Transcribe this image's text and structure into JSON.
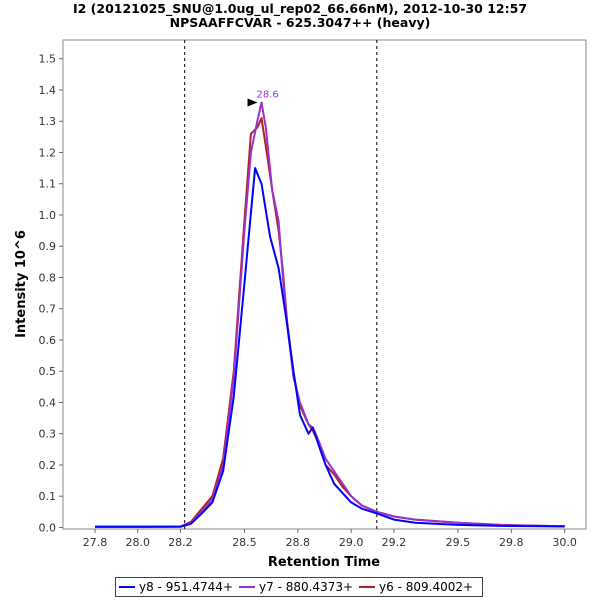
{
  "chart_data": {
    "type": "line",
    "title": "I2 (20121025_SNU@1.0ug_ul_rep02_66.66nM), 2012-10-30 12:57",
    "subtitle": "NPSAAFFCVAR - 625.3047++ (heavy)",
    "xlabel": "Retention Time",
    "ylabel": "Intensity 10^6",
    "xlim": [
      27.65,
      30.1
    ],
    "ylim": [
      -0.005,
      1.56
    ],
    "x_ticks": [
      "27.8",
      "28.0",
      "28.2",
      "28.5",
      "28.8",
      "29.0",
      "29.2",
      "29.5",
      "29.8",
      "30.0"
    ],
    "x_tick_values": [
      27.8,
      28.0,
      28.2,
      28.5,
      28.75,
      29.0,
      29.2,
      29.5,
      29.75,
      30.0
    ],
    "y_ticks": [
      "0.0",
      "0.1",
      "0.2",
      "0.3",
      "0.4",
      "0.5",
      "0.6",
      "0.7",
      "0.8",
      "0.9",
      "1.0",
      "1.1",
      "1.2",
      "1.3",
      "1.4",
      "1.5"
    ],
    "y_tick_values": [
      0.0,
      0.1,
      0.2,
      0.3,
      0.4,
      0.5,
      0.6,
      0.7,
      0.8,
      0.9,
      1.0,
      1.1,
      1.2,
      1.3,
      1.4,
      1.5
    ],
    "integration_bounds": [
      28.22,
      29.12
    ],
    "peak_annotation": {
      "label": "28.6",
      "x": 28.58,
      "y": 1.36,
      "color": "#9932cc"
    },
    "legend_position": "bottom",
    "grid": false,
    "series": [
      {
        "name": "y8 - 951.4744+",
        "color": "#0000ff",
        "x": [
          27.8,
          28.0,
          28.2,
          28.25,
          28.3,
          28.35,
          28.4,
          28.45,
          28.5,
          28.52,
          28.55,
          28.58,
          28.62,
          28.66,
          28.7,
          28.73,
          28.76,
          28.8,
          28.82,
          28.84,
          28.88,
          28.92,
          28.96,
          29.0,
          29.05,
          29.12,
          29.2,
          29.3,
          29.5,
          29.7,
          29.9,
          30.0
        ],
        "values": [
          0.002,
          0.002,
          0.002,
          0.012,
          0.045,
          0.08,
          0.18,
          0.42,
          0.78,
          0.93,
          1.15,
          1.1,
          0.93,
          0.83,
          0.65,
          0.5,
          0.36,
          0.3,
          0.32,
          0.28,
          0.2,
          0.14,
          0.11,
          0.08,
          0.06,
          0.045,
          0.025,
          0.015,
          0.008,
          0.005,
          0.004,
          0.003
        ]
      },
      {
        "name": "y7 - 880.4373+",
        "color": "#9932cc",
        "x": [
          27.8,
          28.0,
          28.2,
          28.25,
          28.3,
          28.35,
          28.4,
          28.45,
          28.5,
          28.53,
          28.56,
          28.58,
          28.6,
          28.63,
          28.66,
          28.68,
          28.7,
          28.73,
          28.76,
          28.8,
          28.82,
          28.84,
          28.88,
          28.92,
          28.96,
          29.0,
          29.05,
          29.12,
          29.2,
          29.3,
          29.5,
          29.7,
          29.9,
          30.0
        ],
        "values": [
          0.002,
          0.002,
          0.003,
          0.015,
          0.05,
          0.09,
          0.2,
          0.48,
          0.95,
          1.2,
          1.3,
          1.36,
          1.28,
          1.08,
          0.98,
          0.8,
          0.65,
          0.48,
          0.4,
          0.33,
          0.32,
          0.29,
          0.22,
          0.18,
          0.14,
          0.1,
          0.07,
          0.05,
          0.035,
          0.025,
          0.015,
          0.008,
          0.005,
          0.004
        ]
      },
      {
        "name": "y6 - 809.4002+",
        "color": "#b22222",
        "x": [
          27.8,
          28.0,
          28.2,
          28.25,
          28.3,
          28.35,
          28.4,
          28.45,
          28.5,
          28.53,
          28.56,
          28.58,
          28.6,
          28.63,
          28.66,
          28.68,
          28.7,
          28.73,
          28.76,
          28.8,
          28.82,
          28.84,
          28.88,
          28.92,
          28.96,
          29.0,
          29.05,
          29.12,
          29.2,
          29.3,
          29.5,
          29.7,
          29.9,
          30.0
        ],
        "values": [
          0.002,
          0.002,
          0.003,
          0.018,
          0.06,
          0.1,
          0.22,
          0.5,
          0.98,
          1.26,
          1.28,
          1.31,
          1.22,
          1.08,
          0.95,
          0.82,
          0.66,
          0.49,
          0.39,
          0.33,
          0.31,
          0.28,
          0.2,
          0.17,
          0.13,
          0.1,
          0.07,
          0.05,
          0.035,
          0.025,
          0.015,
          0.008,
          0.005,
          0.004
        ]
      }
    ]
  },
  "legend": {
    "items": [
      {
        "label": "y8 - 951.4744+",
        "color": "#0000ff"
      },
      {
        "label": "y7 - 880.4373+",
        "color": "#9932cc"
      },
      {
        "label": "y6 - 809.4002+",
        "color": "#b22222"
      }
    ]
  }
}
